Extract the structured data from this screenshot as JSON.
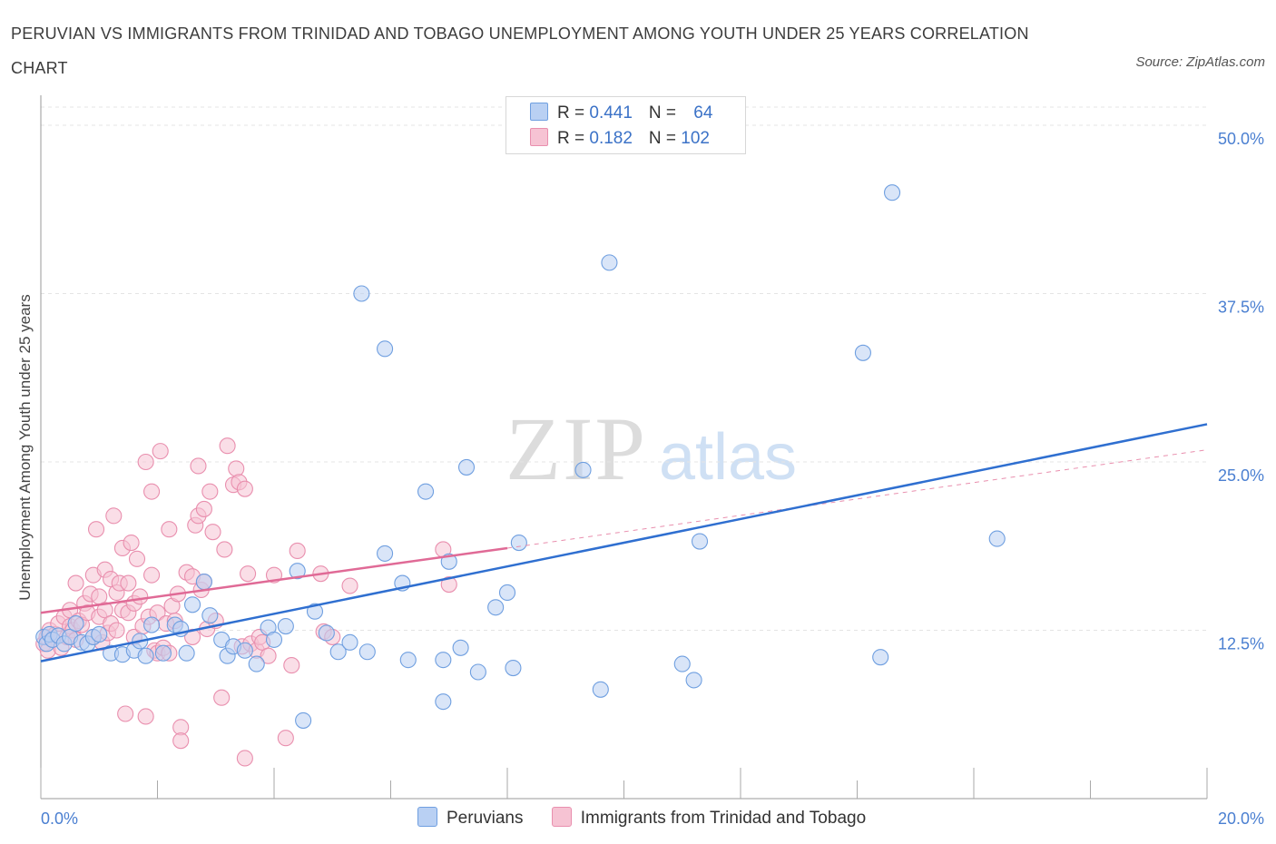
{
  "title": "PERUVIAN VS IMMIGRANTS FROM TRINIDAD AND TOBAGO UNEMPLOYMENT AMONG YOUTH UNDER 25 YEARS CORRELATION CHART",
  "source": "Source: ZipAtlas.com",
  "watermark": {
    "zip": "ZIP",
    "atlas": "atlas"
  },
  "legend": {
    "series1": {
      "r_label": "R = ",
      "r_value": "0.441",
      "n_label": "N = ",
      "n_value": "64"
    },
    "series2": {
      "r_label": "R = ",
      "r_value": "0.182",
      "n_label": "N = ",
      "n_value": "102"
    }
  },
  "chart_data": {
    "type": "scatter",
    "title": "PERUVIAN VS IMMIGRANTS FROM TRINIDAD AND TOBAGO UNEMPLOYMENT AMONG YOUTH UNDER 25 YEARS CORRELATION CHART",
    "xlabel": "",
    "ylabel": "Unemployment Among Youth under 25 years",
    "xlim": [
      0,
      20
    ],
    "ylim": [
      0,
      50
    ],
    "x_tick_labels": [
      "0.0%",
      "20.0%"
    ],
    "y_tick_labels": [
      "12.5%",
      "25.0%",
      "37.5%",
      "50.0%"
    ],
    "y_ticks": [
      12.5,
      25.0,
      37.5,
      50.0
    ],
    "grid": true,
    "legend_position": "top-center",
    "series": [
      {
        "name": "Peruvians",
        "color": "#6f9fe0",
        "fill": "#b9d0f3",
        "R": 0.441,
        "N": 64,
        "trend": {
          "x": [
            0,
            20
          ],
          "y": [
            10.2,
            27.8
          ],
          "dashed_extension": false
        },
        "points": [
          [
            0.05,
            12.0
          ],
          [
            0.1,
            11.5
          ],
          [
            0.15,
            12.2
          ],
          [
            0.2,
            11.8
          ],
          [
            0.3,
            12.1
          ],
          [
            0.4,
            11.5
          ],
          [
            0.5,
            12.0
          ],
          [
            0.6,
            13.0
          ],
          [
            0.7,
            11.6
          ],
          [
            0.8,
            11.5
          ],
          [
            0.9,
            12.0
          ],
          [
            1.0,
            12.2
          ],
          [
            1.2,
            10.8
          ],
          [
            1.4,
            10.7
          ],
          [
            1.6,
            11.0
          ],
          [
            1.7,
            11.7
          ],
          [
            1.8,
            10.6
          ],
          [
            1.9,
            12.9
          ],
          [
            2.1,
            10.8
          ],
          [
            2.3,
            12.9
          ],
          [
            2.4,
            12.6
          ],
          [
            2.5,
            10.8
          ],
          [
            2.6,
            14.4
          ],
          [
            2.8,
            16.1
          ],
          [
            2.9,
            13.6
          ],
          [
            3.1,
            11.8
          ],
          [
            3.2,
            10.6
          ],
          [
            3.3,
            11.3
          ],
          [
            3.5,
            11.0
          ],
          [
            3.7,
            10.0
          ],
          [
            3.9,
            12.7
          ],
          [
            4.0,
            11.8
          ],
          [
            4.2,
            12.8
          ],
          [
            4.4,
            16.9
          ],
          [
            4.5,
            5.8
          ],
          [
            4.7,
            13.9
          ],
          [
            4.9,
            12.3
          ],
          [
            5.1,
            10.9
          ],
          [
            5.3,
            11.6
          ],
          [
            5.5,
            37.5
          ],
          [
            5.6,
            10.9
          ],
          [
            5.9,
            33.4
          ],
          [
            5.9,
            18.2
          ],
          [
            6.2,
            16.0
          ],
          [
            6.3,
            10.3
          ],
          [
            6.6,
            22.8
          ],
          [
            6.9,
            10.3
          ],
          [
            6.9,
            7.2
          ],
          [
            7.0,
            17.6
          ],
          [
            7.2,
            11.2
          ],
          [
            7.3,
            24.6
          ],
          [
            7.5,
            9.4
          ],
          [
            7.8,
            14.2
          ],
          [
            8.0,
            15.3
          ],
          [
            8.1,
            9.7
          ],
          [
            8.2,
            19.0
          ],
          [
            9.3,
            24.4
          ],
          [
            9.6,
            8.1
          ],
          [
            9.75,
            39.8
          ],
          [
            11.0,
            10.0
          ],
          [
            11.2,
            8.8
          ],
          [
            11.3,
            19.1
          ],
          [
            14.1,
            33.1
          ],
          [
            14.4,
            10.5
          ],
          [
            14.6,
            45.0
          ],
          [
            16.4,
            19.3
          ]
        ]
      },
      {
        "name": "Immigrants from Trinidad and Tobago",
        "color": "#e98fae",
        "fill": "#f6c3d3",
        "R": 0.182,
        "N": 102,
        "trend": {
          "x": [
            0,
            8.0
          ],
          "y": [
            13.8,
            18.6
          ],
          "dashed_extension": true,
          "dashed_to": [
            20,
            25.9
          ]
        },
        "points": [
          [
            0.05,
            11.5
          ],
          [
            0.1,
            12.0
          ],
          [
            0.12,
            11.0
          ],
          [
            0.15,
            12.5
          ],
          [
            0.2,
            11.8
          ],
          [
            0.25,
            12.2
          ],
          [
            0.3,
            13.0
          ],
          [
            0.35,
            11.2
          ],
          [
            0.4,
            13.5
          ],
          [
            0.45,
            12.0
          ],
          [
            0.5,
            12.8
          ],
          [
            0.5,
            14.0
          ],
          [
            0.55,
            12.5
          ],
          [
            0.6,
            11.8
          ],
          [
            0.6,
            16.0
          ],
          [
            0.65,
            13.2
          ],
          [
            0.7,
            12.9
          ],
          [
            0.75,
            14.5
          ],
          [
            0.8,
            13.8
          ],
          [
            0.85,
            15.2
          ],
          [
            0.9,
            12.0
          ],
          [
            0.9,
            16.6
          ],
          [
            0.95,
            20.0
          ],
          [
            1.0,
            13.5
          ],
          [
            1.0,
            15.0
          ],
          [
            1.05,
            11.6
          ],
          [
            1.1,
            17.0
          ],
          [
            1.1,
            14.0
          ],
          [
            1.15,
            12.3
          ],
          [
            1.2,
            16.3
          ],
          [
            1.2,
            13.0
          ],
          [
            1.25,
            21.0
          ],
          [
            1.3,
            12.5
          ],
          [
            1.3,
            15.3
          ],
          [
            1.35,
            16.0
          ],
          [
            1.4,
            14.0
          ],
          [
            1.4,
            18.6
          ],
          [
            1.45,
            6.3
          ],
          [
            1.5,
            16.0
          ],
          [
            1.5,
            13.8
          ],
          [
            1.55,
            19.0
          ],
          [
            1.6,
            14.5
          ],
          [
            1.6,
            12.0
          ],
          [
            1.65,
            17.8
          ],
          [
            1.7,
            15.0
          ],
          [
            1.75,
            12.8
          ],
          [
            1.8,
            25.0
          ],
          [
            1.8,
            6.1
          ],
          [
            1.85,
            13.5
          ],
          [
            1.9,
            22.8
          ],
          [
            1.9,
            16.6
          ],
          [
            1.95,
            11.0
          ],
          [
            2.0,
            10.8
          ],
          [
            2.0,
            13.8
          ],
          [
            2.05,
            25.8
          ],
          [
            2.1,
            11.2
          ],
          [
            2.15,
            13.0
          ],
          [
            2.2,
            20.0
          ],
          [
            2.2,
            10.8
          ],
          [
            2.25,
            14.3
          ],
          [
            2.3,
            13.2
          ],
          [
            2.35,
            15.2
          ],
          [
            2.4,
            5.3
          ],
          [
            2.4,
            4.3
          ],
          [
            2.5,
            16.8
          ],
          [
            2.6,
            12.0
          ],
          [
            2.6,
            16.5
          ],
          [
            2.65,
            20.3
          ],
          [
            2.7,
            24.7
          ],
          [
            2.7,
            21.0
          ],
          [
            2.75,
            15.5
          ],
          [
            2.8,
            21.5
          ],
          [
            2.8,
            16.1
          ],
          [
            2.85,
            12.6
          ],
          [
            2.9,
            22.8
          ],
          [
            2.95,
            19.8
          ],
          [
            3.0,
            13.2
          ],
          [
            3.1,
            7.5
          ],
          [
            3.15,
            18.5
          ],
          [
            3.2,
            26.2
          ],
          [
            3.3,
            23.3
          ],
          [
            3.35,
            24.5
          ],
          [
            3.4,
            23.5
          ],
          [
            3.45,
            11.3
          ],
          [
            3.5,
            23.0
          ],
          [
            3.5,
            3.0
          ],
          [
            3.55,
            16.7
          ],
          [
            3.6,
            11.5
          ],
          [
            3.7,
            11.0
          ],
          [
            3.75,
            12.0
          ],
          [
            3.8,
            11.6
          ],
          [
            3.9,
            10.6
          ],
          [
            4.0,
            16.6
          ],
          [
            4.2,
            4.5
          ],
          [
            4.3,
            9.9
          ],
          [
            4.4,
            18.4
          ],
          [
            4.8,
            16.7
          ],
          [
            4.85,
            12.4
          ],
          [
            5.0,
            12.0
          ],
          [
            5.3,
            15.8
          ],
          [
            6.9,
            18.5
          ],
          [
            7.0,
            15.9
          ]
        ]
      }
    ]
  }
}
